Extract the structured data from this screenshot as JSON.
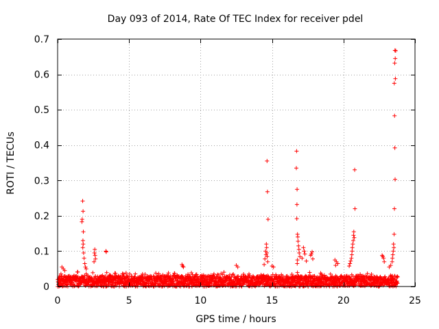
{
  "chart_data": {
    "type": "scatter",
    "title": "Day 093 of 2014, Rate Of TEC Index for receiver pdel",
    "xlabel": "GPS time / hours",
    "ylabel": "ROTI / TECUs",
    "xlim": [
      0,
      25
    ],
    "ylim": [
      0,
      0.7
    ],
    "xticks": [
      "0",
      "5",
      "10",
      "15",
      "20",
      "25"
    ],
    "yticks": [
      "0",
      "0.1",
      "0.2",
      "0.3",
      "0.4",
      "0.5",
      "0.6",
      "0.7"
    ],
    "xtick_values": [
      0,
      5,
      10,
      15,
      20,
      25
    ],
    "ytick_values": [
      0,
      0.1,
      0.2,
      0.3,
      0.4,
      0.5,
      0.6,
      0.7
    ],
    "grid": true,
    "marker": "+",
    "color": "#ff0000",
    "baseline": {
      "x_start": 0.0,
      "x_end": 23.8,
      "typical_max": 0.03
    },
    "series": [
      {
        "name": "ROTI",
        "points": [
          [
            1.75,
            0.242
          ],
          [
            1.78,
            0.213
          ],
          [
            1.72,
            0.19
          ],
          [
            1.7,
            0.183
          ],
          [
            1.8,
            0.155
          ],
          [
            1.77,
            0.13
          ],
          [
            1.79,
            0.12
          ],
          [
            1.76,
            0.11
          ],
          [
            1.82,
            0.095
          ],
          [
            1.85,
            0.08
          ],
          [
            1.9,
            0.065
          ],
          [
            1.95,
            0.055
          ],
          [
            2.0,
            0.05
          ],
          [
            2.6,
            0.105
          ],
          [
            2.58,
            0.095
          ],
          [
            2.62,
            0.088
          ],
          [
            2.65,
            0.078
          ],
          [
            2.55,
            0.07
          ],
          [
            3.4,
            0.098
          ],
          [
            3.38,
            0.1
          ],
          [
            0.3,
            0.055
          ],
          [
            0.4,
            0.05
          ],
          [
            0.5,
            0.045
          ],
          [
            8.7,
            0.062
          ],
          [
            8.75,
            0.058
          ],
          [
            8.8,
            0.055
          ],
          [
            12.5,
            0.06
          ],
          [
            12.6,
            0.055
          ],
          [
            14.65,
            0.355
          ],
          [
            14.68,
            0.268
          ],
          [
            14.72,
            0.19
          ],
          [
            14.6,
            0.12
          ],
          [
            14.62,
            0.11
          ],
          [
            14.55,
            0.1
          ],
          [
            14.64,
            0.095
          ],
          [
            14.58,
            0.09
          ],
          [
            14.66,
            0.085
          ],
          [
            14.5,
            0.078
          ],
          [
            14.7,
            0.07
          ],
          [
            14.45,
            0.062
          ],
          [
            15.0,
            0.058
          ],
          [
            15.1,
            0.055
          ],
          [
            16.72,
            0.383
          ],
          [
            16.7,
            0.335
          ],
          [
            16.75,
            0.275
          ],
          [
            16.74,
            0.232
          ],
          [
            16.73,
            0.192
          ],
          [
            16.78,
            0.148
          ],
          [
            16.8,
            0.14
          ],
          [
            16.82,
            0.128
          ],
          [
            16.85,
            0.115
          ],
          [
            16.88,
            0.105
          ],
          [
            16.9,
            0.095
          ],
          [
            16.95,
            0.085
          ],
          [
            16.78,
            0.075
          ],
          [
            16.76,
            0.065
          ],
          [
            17.2,
            0.11
          ],
          [
            17.25,
            0.1
          ],
          [
            17.3,
            0.092
          ],
          [
            17.1,
            0.08
          ],
          [
            17.4,
            0.072
          ],
          [
            17.8,
            0.098
          ],
          [
            17.75,
            0.092
          ],
          [
            17.7,
            0.088
          ],
          [
            17.85,
            0.078
          ],
          [
            19.4,
            0.075
          ],
          [
            19.5,
            0.07
          ],
          [
            19.6,
            0.065
          ],
          [
            19.45,
            0.06
          ],
          [
            20.78,
            0.33
          ],
          [
            20.8,
            0.22
          ],
          [
            20.72,
            0.155
          ],
          [
            20.7,
            0.145
          ],
          [
            20.75,
            0.138
          ],
          [
            20.68,
            0.13
          ],
          [
            20.65,
            0.12
          ],
          [
            20.62,
            0.11
          ],
          [
            20.6,
            0.1
          ],
          [
            20.58,
            0.09
          ],
          [
            20.55,
            0.08
          ],
          [
            20.5,
            0.072
          ],
          [
            20.45,
            0.065
          ],
          [
            20.4,
            0.058
          ],
          [
            22.7,
            0.088
          ],
          [
            22.75,
            0.085
          ],
          [
            22.8,
            0.08
          ],
          [
            22.85,
            0.07
          ],
          [
            23.6,
            0.668
          ],
          [
            23.65,
            0.667
          ],
          [
            23.62,
            0.645
          ],
          [
            23.58,
            0.632
          ],
          [
            23.63,
            0.588
          ],
          [
            23.55,
            0.575
          ],
          [
            23.57,
            0.483
          ],
          [
            23.59,
            0.392
          ],
          [
            23.61,
            0.303
          ],
          [
            23.56,
            0.22
          ],
          [
            23.54,
            0.148
          ],
          [
            23.5,
            0.12
          ],
          [
            23.52,
            0.11
          ],
          [
            23.48,
            0.1
          ],
          [
            23.45,
            0.09
          ],
          [
            23.42,
            0.08
          ],
          [
            23.4,
            0.07
          ],
          [
            23.3,
            0.06
          ],
          [
            23.2,
            0.055
          ]
        ]
      }
    ]
  }
}
